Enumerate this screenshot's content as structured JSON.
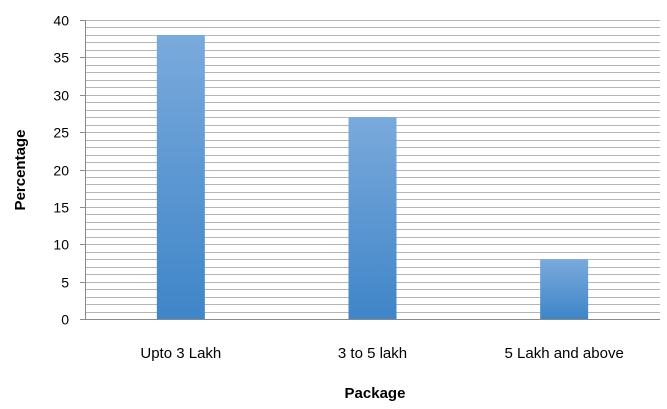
{
  "chart_data": {
    "type": "bar",
    "title": "",
    "xlabel": "Package",
    "ylabel": "Percentage",
    "categories": [
      "Upto 3 Lakh",
      "3 to 5 lakh",
      "5 Lakh and above"
    ],
    "values": [
      38,
      27,
      8
    ],
    "ylim": [
      0,
      40
    ],
    "y_ticks": [
      0,
      5,
      10,
      15,
      20,
      25,
      30,
      35,
      40
    ],
    "minor_gridline_step": 1,
    "grid": true,
    "legend": "none",
    "colors": {
      "bar_top": "#7aaadc",
      "bar_bottom": "#3f85c8",
      "gridline": "#b5b5b5",
      "axis": "#8a8a8a"
    }
  }
}
